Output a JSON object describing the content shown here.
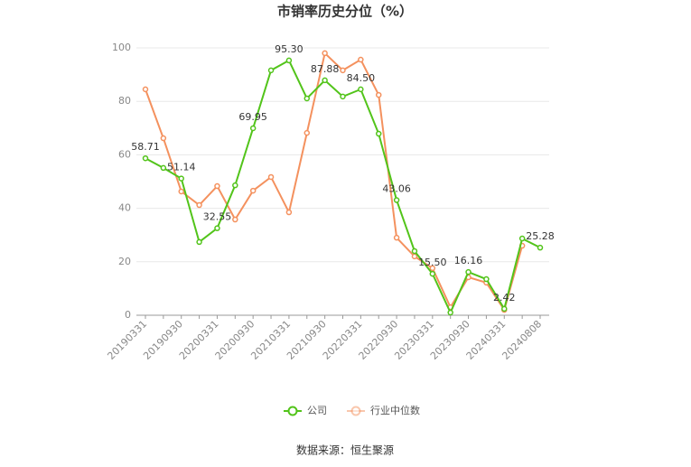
{
  "chart_data": {
    "type": "line",
    "title": "市销率历史分位（%）",
    "categories": [
      "20190331",
      null,
      "20190930",
      null,
      "20200331",
      null,
      "20200930",
      null,
      "20210331",
      null,
      "20210930",
      null,
      "20220331",
      null,
      "20220930",
      null,
      "20230331",
      null,
      "20230930",
      null,
      "20240331",
      null,
      "20240808"
    ],
    "series": [
      {
        "name": "公司",
        "color": "#52c41a",
        "values": [
          58.71,
          55.1,
          51.14,
          27.4,
          32.55,
          48.6,
          69.95,
          91.6,
          95.3,
          81.1,
          87.88,
          81.8,
          84.5,
          67.9,
          43.06,
          24.0,
          15.5,
          1.0,
          16.16,
          13.5,
          2.42,
          28.7,
          25.28
        ],
        "value_labels": [
          "58.71",
          null,
          "51.14",
          null,
          "32.55",
          null,
          "69.95",
          null,
          "95.30",
          null,
          "87.88",
          null,
          "84.50",
          null,
          "43.06",
          null,
          "15.50",
          null,
          "16.16",
          null,
          "2.42",
          null,
          "25.28"
        ]
      },
      {
        "name": "行业中位数",
        "color": "#f4915e",
        "values": [
          84.5,
          66.2,
          46.3,
          41.2,
          48.3,
          35.8,
          46.6,
          51.7,
          38.5,
          68.2,
          98.0,
          91.6,
          95.6,
          82.4,
          29.0,
          22.0,
          17.6,
          3.0,
          14.2,
          12.2,
          2.0,
          26.0,
          null
        ]
      }
    ],
    "ylim": [
      0,
      100
    ],
    "yticks": [
      0,
      20,
      40,
      60,
      80,
      100
    ],
    "grid": true,
    "source": "数据来源：恒生聚源"
  }
}
